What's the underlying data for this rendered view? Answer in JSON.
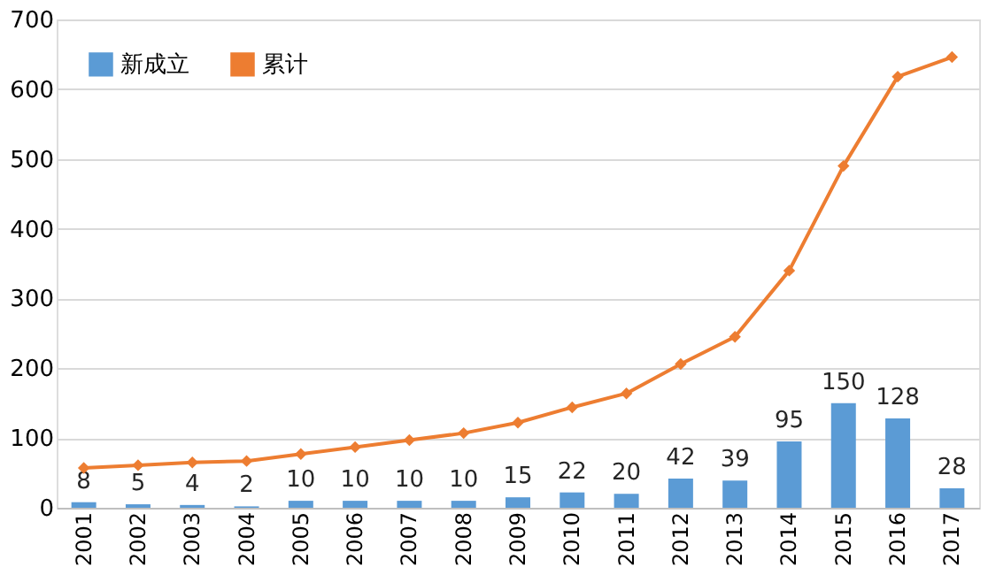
{
  "chart_data": {
    "type": "bar",
    "categories": [
      "2001",
      "2002",
      "2003",
      "2004",
      "2005",
      "2006",
      "2007",
      "2008",
      "2009",
      "2010",
      "2011",
      "2012",
      "2013",
      "2014",
      "2015",
      "2016",
      "2017"
    ],
    "series": [
      {
        "name": "新成立",
        "color": "#5b9bd5",
        "values": [
          8,
          5,
          4,
          2,
          10,
          10,
          10,
          10,
          15,
          22,
          20,
          42,
          39,
          95,
          150,
          128,
          28
        ],
        "value_labels": [
          "8",
          "5",
          "4",
          "2",
          "10",
          "10",
          "10",
          "10",
          "15",
          "22",
          "20",
          "42",
          "39",
          "95",
          "150",
          "128",
          "28"
        ]
      },
      {
        "name": "累计",
        "color": "#ed7d31",
        "type": "line",
        "marker": "diamond",
        "values": [
          57,
          61,
          65,
          67,
          77,
          87,
          97,
          107,
          122,
          144,
          164,
          206,
          245,
          340,
          490,
          618,
          646
        ]
      }
    ],
    "ylim": [
      0,
      700
    ],
    "yticks": [
      0,
      100,
      200,
      300,
      400,
      500,
      600,
      700
    ],
    "grid": "y",
    "legend": "top left"
  }
}
